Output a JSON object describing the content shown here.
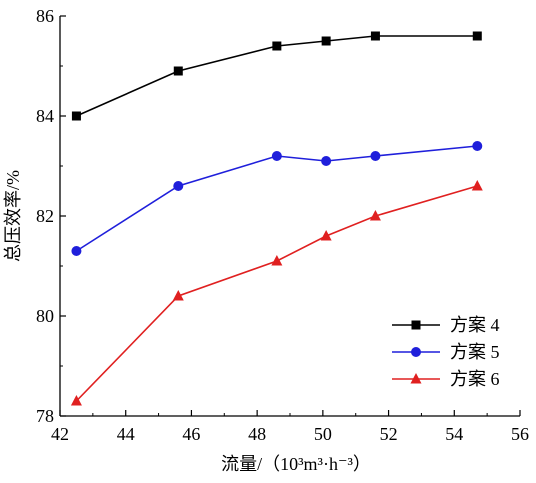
{
  "chart_data": {
    "type": "line",
    "xlabel": "流量/（10³m³·h⁻³）",
    "ylabel": "总压效率/%",
    "xlim": [
      42,
      56
    ],
    "ylim": [
      78,
      86
    ],
    "xticks": [
      42,
      44,
      46,
      48,
      50,
      52,
      54,
      56
    ],
    "yticks": [
      78,
      80,
      82,
      84,
      86
    ],
    "grid": false,
    "legend_position": "bottom-right",
    "x": [
      42.5,
      45.6,
      48.6,
      50.1,
      51.6,
      54.7
    ],
    "series": [
      {
        "name": "方案 4",
        "values": [
          84.0,
          84.9,
          85.4,
          85.5,
          85.6,
          85.6
        ],
        "color": "#000000",
        "marker": "square"
      },
      {
        "name": "方案 5",
        "values": [
          81.3,
          82.6,
          83.2,
          83.1,
          83.2,
          83.4
        ],
        "color": "#1f1fdb",
        "marker": "circle"
      },
      {
        "name": "方案 6",
        "values": [
          78.3,
          80.4,
          81.1,
          81.6,
          82.0,
          82.6
        ],
        "color": "#e02020",
        "marker": "triangle"
      }
    ]
  }
}
